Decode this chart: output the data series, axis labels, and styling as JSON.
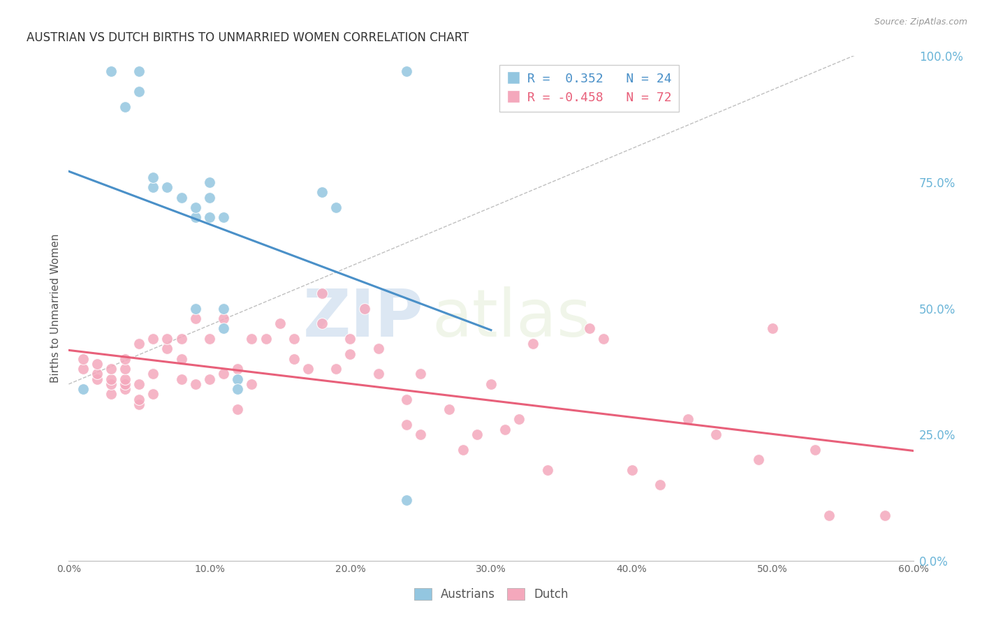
{
  "title": "AUSTRIAN VS DUTCH BIRTHS TO UNMARRIED WOMEN CORRELATION CHART",
  "source": "Source: ZipAtlas.com",
  "ylabel": "Births to Unmarried Women",
  "xlabel_ticks": [
    0.0,
    0.1,
    0.2,
    0.3,
    0.4,
    0.5,
    0.6
  ],
  "ylabel_ticks": [
    0.0,
    0.25,
    0.5,
    0.75,
    1.0
  ],
  "xlim": [
    0.0,
    0.6
  ],
  "ylim": [
    0.0,
    1.0
  ],
  "austrians_x": [
    0.01,
    0.03,
    0.04,
    0.05,
    0.05,
    0.06,
    0.06,
    0.07,
    0.08,
    0.09,
    0.09,
    0.09,
    0.1,
    0.1,
    0.1,
    0.11,
    0.11,
    0.11,
    0.12,
    0.12,
    0.18,
    0.19,
    0.24,
    0.24
  ],
  "austrians_y": [
    0.34,
    0.97,
    0.9,
    0.93,
    0.97,
    0.74,
    0.76,
    0.74,
    0.72,
    0.68,
    0.7,
    0.5,
    0.68,
    0.72,
    0.75,
    0.46,
    0.68,
    0.5,
    0.36,
    0.34,
    0.73,
    0.7,
    0.97,
    0.12
  ],
  "dutch_x": [
    0.01,
    0.01,
    0.02,
    0.02,
    0.02,
    0.03,
    0.03,
    0.03,
    0.03,
    0.04,
    0.04,
    0.04,
    0.04,
    0.04,
    0.05,
    0.05,
    0.05,
    0.05,
    0.06,
    0.06,
    0.06,
    0.07,
    0.07,
    0.08,
    0.08,
    0.08,
    0.09,
    0.09,
    0.1,
    0.1,
    0.11,
    0.11,
    0.12,
    0.12,
    0.13,
    0.13,
    0.14,
    0.15,
    0.16,
    0.16,
    0.17,
    0.18,
    0.18,
    0.19,
    0.2,
    0.2,
    0.21,
    0.22,
    0.22,
    0.24,
    0.24,
    0.25,
    0.25,
    0.27,
    0.28,
    0.29,
    0.3,
    0.31,
    0.32,
    0.33,
    0.34,
    0.37,
    0.38,
    0.4,
    0.42,
    0.44,
    0.46,
    0.49,
    0.5,
    0.53,
    0.54,
    0.58
  ],
  "dutch_y": [
    0.38,
    0.4,
    0.36,
    0.37,
    0.39,
    0.33,
    0.35,
    0.36,
    0.38,
    0.34,
    0.35,
    0.36,
    0.38,
    0.4,
    0.31,
    0.32,
    0.35,
    0.43,
    0.33,
    0.37,
    0.44,
    0.42,
    0.44,
    0.36,
    0.4,
    0.44,
    0.35,
    0.48,
    0.36,
    0.44,
    0.37,
    0.48,
    0.3,
    0.38,
    0.35,
    0.44,
    0.44,
    0.47,
    0.4,
    0.44,
    0.38,
    0.47,
    0.53,
    0.38,
    0.41,
    0.44,
    0.5,
    0.37,
    0.42,
    0.27,
    0.32,
    0.25,
    0.37,
    0.3,
    0.22,
    0.25,
    0.35,
    0.26,
    0.28,
    0.43,
    0.18,
    0.46,
    0.44,
    0.18,
    0.15,
    0.28,
    0.25,
    0.2,
    0.46,
    0.22,
    0.09,
    0.09
  ],
  "blue_color": "#93C6E0",
  "pink_color": "#F4A8BC",
  "blue_line_color": "#4A90C8",
  "pink_line_color": "#E8607A",
  "legend_r_austrians": "R =  0.352   N = 24",
  "legend_r_dutch": "R = -0.458   N = 72",
  "watermark_zip": "ZIP",
  "watermark_atlas": "atlas",
  "title_fontsize": 12,
  "axis_label_fontsize": 11,
  "tick_fontsize": 10,
  "right_tick_color": "#6BB5D8"
}
